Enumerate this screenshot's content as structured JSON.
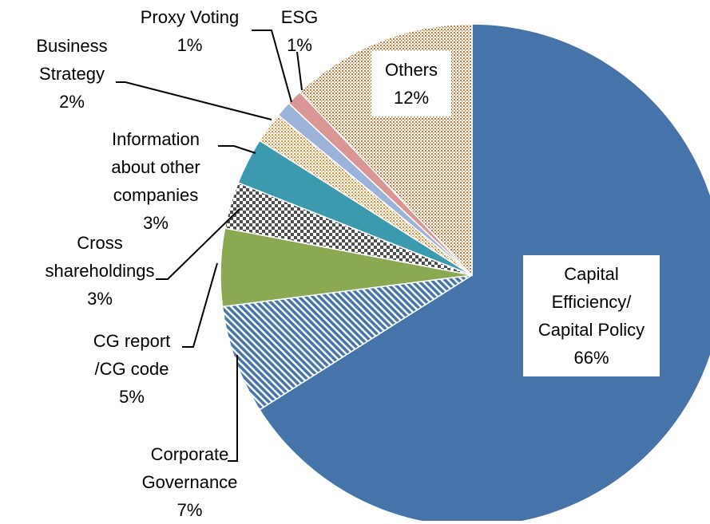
{
  "chart_data": {
    "type": "pie",
    "categories": [
      "Capital Efficiency/ Capital Policy",
      "Corporate Governance",
      "CG report /CG code",
      "Cross shareholdings",
      "Information about other companies",
      "Business Strategy",
      "Proxy Voting",
      "ESG",
      "Others"
    ],
    "values": [
      66,
      7,
      5,
      3,
      3,
      2,
      1,
      1,
      12
    ],
    "value_labels": [
      "66%",
      "7%",
      "5%",
      "3%",
      "3%",
      "2%",
      "1%",
      "1%",
      "12%"
    ],
    "colors": [
      "#4674aa",
      "#4674aa",
      "#8ba852",
      "#4d4d4d",
      "#3c9aaf",
      "#d7943f",
      "#9cb2d8",
      "#d99694",
      "#c0773a"
    ],
    "patterns": [
      "solid",
      "diagonal",
      "solid",
      "checker",
      "solid",
      "dots",
      "solid",
      "solid",
      "dots"
    ]
  }
}
